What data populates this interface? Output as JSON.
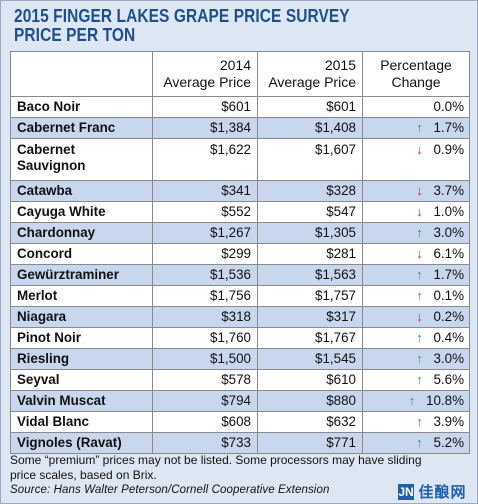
{
  "chart_data": {
    "type": "table",
    "title": "2015 FINGER LAKES GRAPE PRICE SURVEY",
    "subtitle": "PRICE PER TON",
    "columns": [
      {
        "line1": "",
        "line2": ""
      },
      {
        "line1": "2014",
        "line2": "Average Price"
      },
      {
        "line1": "2015",
        "line2": "Average Price"
      },
      {
        "line1": "Percentage",
        "line2": "Change"
      }
    ],
    "rows": [
      {
        "name": "Baco Noir",
        "price_2014": "$601",
        "price_2015": "$601",
        "direction": "none",
        "change": "0.0%"
      },
      {
        "name": "Cabernet Franc",
        "price_2014": "$1,384",
        "price_2015": "$1,408",
        "direction": "up",
        "change": "1.7%"
      },
      {
        "name": "Cabernet Sauvignon",
        "price_2014": "$1,622",
        "price_2015": "$1,607",
        "direction": "down",
        "change": "0.9%"
      },
      {
        "name": "Catawba",
        "price_2014": "$341",
        "price_2015": "$328",
        "direction": "down",
        "change": "3.7%"
      },
      {
        "name": "Cayuga White",
        "price_2014": "$552",
        "price_2015": "$547",
        "direction": "down",
        "change": "1.0%"
      },
      {
        "name": "Chardonnay",
        "price_2014": "$1,267",
        "price_2015": "$1,305",
        "direction": "up",
        "change": "3.0%"
      },
      {
        "name": "Concord",
        "price_2014": "$299",
        "price_2015": "$281",
        "direction": "down",
        "change": "6.1%"
      },
      {
        "name": "Gewürztraminer",
        "price_2014": "$1,536",
        "price_2015": "$1,563",
        "direction": "up",
        "change": "1.7%"
      },
      {
        "name": "Merlot",
        "price_2014": "$1,756",
        "price_2015": "$1,757",
        "direction": "up",
        "change": "0.1%"
      },
      {
        "name": "Niagara",
        "price_2014": "$318",
        "price_2015": "$317",
        "direction": "down",
        "change": "0.2%"
      },
      {
        "name": "Pinot Noir",
        "price_2014": "$1,760",
        "price_2015": "$1,767",
        "direction": "up",
        "change": "0.4%"
      },
      {
        "name": "Riesling",
        "price_2014": "$1,500",
        "price_2015": "$1,545",
        "direction": "up",
        "change": "3.0%"
      },
      {
        "name": "Seyval",
        "price_2014": "$578",
        "price_2015": "$610",
        "direction": "up",
        "change": "5.6%"
      },
      {
        "name": "Valvin Muscat",
        "price_2014": "$794",
        "price_2015": "$880",
        "direction": "up",
        "change": "10.8%"
      },
      {
        "name": "Vidal Blanc",
        "price_2014": "$608",
        "price_2015": "$632",
        "direction": "up",
        "change": "3.9%"
      },
      {
        "name": "Vignoles (Ravat)",
        "price_2014": "$733",
        "price_2015": "$771",
        "direction": "up",
        "change": "5.2%"
      }
    ],
    "footnote": "Some “premium” prices may not be listed. Some processors may have sliding price scales, based on Brix.",
    "source": "Source: Hans Walter Peterson/Cornell Cooperative Extension",
    "colors": {
      "title": "#1f4e8c",
      "band": "#c8d7ed",
      "up": "#3a9a4a",
      "down": "#d8262a"
    }
  },
  "watermark": {
    "mark": "JN",
    "text": "佳酿网"
  }
}
